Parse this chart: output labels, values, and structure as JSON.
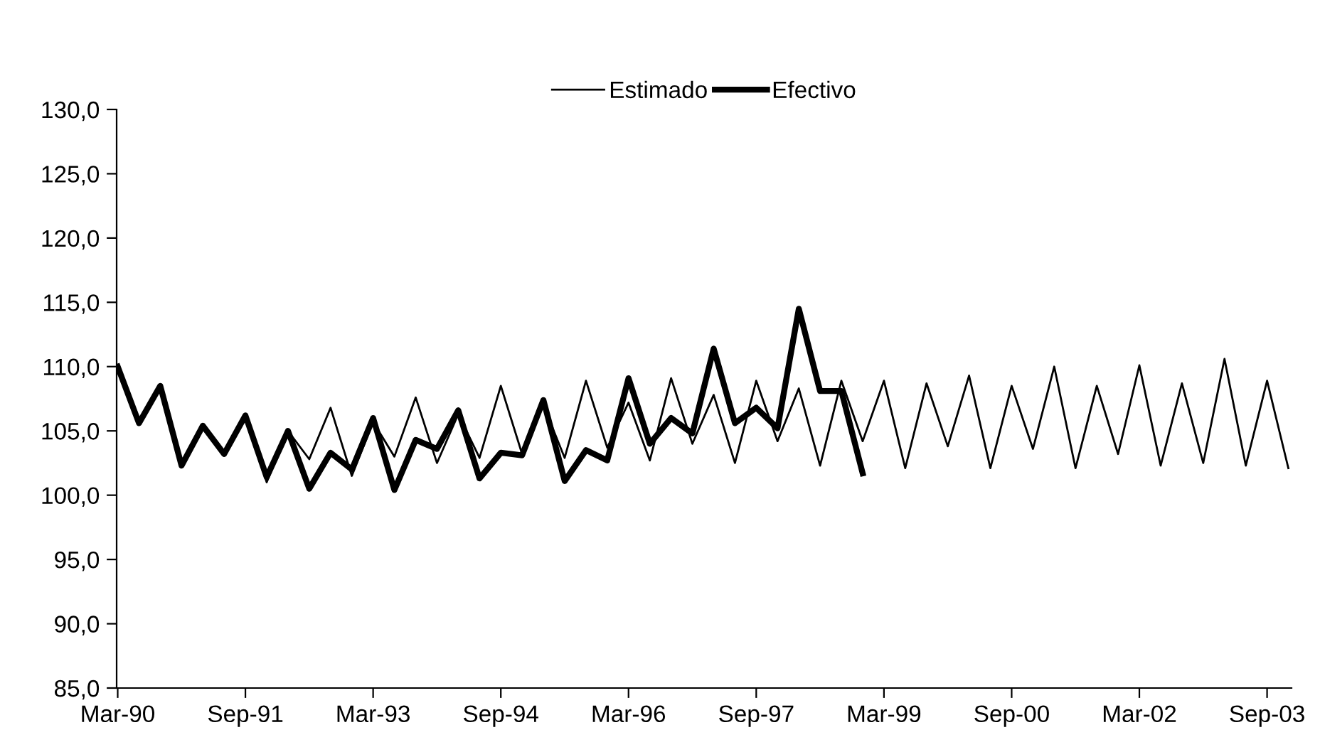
{
  "chart_data": {
    "type": "line",
    "categories": [
      "Mar-90",
      null,
      null,
      null,
      null,
      null,
      "Sep-91",
      null,
      null,
      null,
      null,
      null,
      "Mar-93",
      null,
      null,
      null,
      null,
      null,
      "Sep-94",
      null,
      null,
      null,
      null,
      null,
      "Mar-96",
      null,
      null,
      null,
      null,
      null,
      "Sep-97",
      null,
      null,
      null,
      null,
      null,
      "Mar-99",
      null,
      null,
      null,
      null,
      null,
      "Sep-00",
      null,
      null,
      null,
      null,
      null,
      "Mar-02",
      null,
      null,
      null,
      null,
      null,
      "Sep-03",
      null
    ],
    "series": [
      {
        "name": "Estimado",
        "color": "#000000",
        "values": [
          110.0,
          105.6,
          108.5,
          102.3,
          105.4,
          103.2,
          106.2,
          101.0,
          105.0,
          102.8,
          106.8,
          101.5,
          105.7,
          103.0,
          107.6,
          102.5,
          106.3,
          102.9,
          108.5,
          103.2,
          107.0,
          102.9,
          108.9,
          103.7,
          107.2,
          102.7,
          109.1,
          104.0,
          107.8,
          102.5,
          108.9,
          104.2,
          108.3,
          102.3,
          108.9,
          104.2,
          108.9,
          102.1,
          108.7,
          103.8,
          109.3,
          102.1,
          108.5,
          103.6,
          110.0,
          102.1,
          108.5,
          103.2,
          110.1,
          102.3,
          108.7,
          102.5,
          110.6,
          102.3,
          108.9,
          102.1
        ]
      },
      {
        "name": "Efectivo",
        "color": "#000000",
        "values": [
          110.0,
          105.6,
          108.5,
          102.3,
          105.4,
          103.2,
          106.2,
          101.4,
          105.0,
          100.5,
          103.3,
          102.0,
          106.0,
          100.4,
          104.3,
          103.6,
          106.6,
          101.3,
          103.3,
          103.1,
          107.4,
          101.1,
          103.5,
          102.7,
          109.1,
          104.0,
          106.0,
          104.8,
          111.4,
          105.6,
          106.8,
          105.2,
          114.5,
          108.1,
          108.1,
          101.7,
          null,
          null,
          null,
          null,
          null,
          null,
          null,
          null,
          null,
          null,
          null,
          null,
          null,
          null,
          null,
          null,
          null,
          null,
          null,
          null
        ]
      }
    ],
    "ylim": [
      85,
      130
    ],
    "yticks": [
      {
        "value": 85,
        "label": "85,0"
      },
      {
        "value": 90,
        "label": "90,0"
      },
      {
        "value": 95,
        "label": "95,0"
      },
      {
        "value": 100,
        "label": "100,0"
      },
      {
        "value": 105,
        "label": "105,0"
      },
      {
        "value": 110,
        "label": "110,0"
      },
      {
        "value": 115,
        "label": "115,0"
      },
      {
        "value": 120,
        "label": "120,0"
      },
      {
        "value": 125,
        "label": "125,0"
      },
      {
        "value": 130,
        "label": "130,0"
      }
    ],
    "grid": false,
    "legend": "top",
    "marker": "none",
    "line_style": "solid"
  }
}
